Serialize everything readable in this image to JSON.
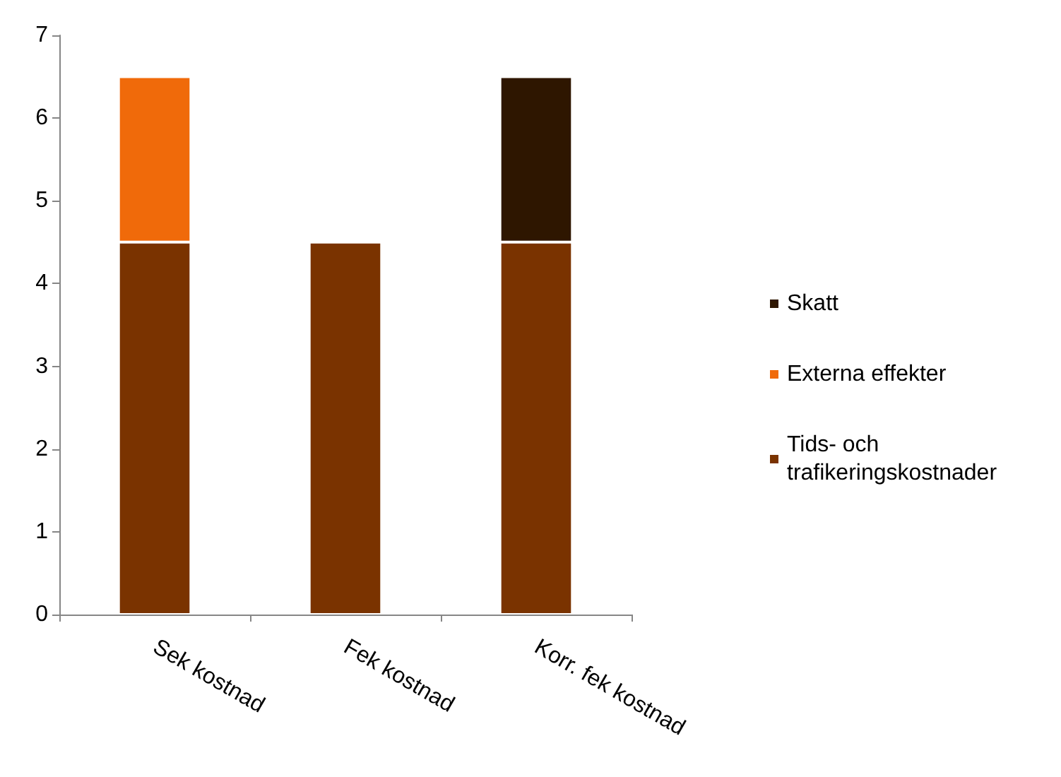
{
  "chart_data": {
    "type": "bar",
    "stacked": true,
    "categories": [
      "Sek kostnad",
      "Fek kostnad",
      "Korr. fek kostnad"
    ],
    "series": [
      {
        "name": "Tids- och trafikeringskostnader",
        "color": "#7a3300",
        "values": [
          4.5,
          4.5,
          4.5
        ]
      },
      {
        "name": "Externa effekter",
        "color": "#f06a0a",
        "values": [
          2,
          null,
          null
        ]
      },
      {
        "name": "Skatt",
        "color": "#2e1600",
        "values": [
          null,
          null,
          2
        ]
      }
    ],
    "ylim": [
      0,
      7
    ],
    "yticks": [
      0,
      1,
      2,
      3,
      4,
      5,
      6,
      7
    ],
    "grid": false,
    "legend": "right"
  }
}
